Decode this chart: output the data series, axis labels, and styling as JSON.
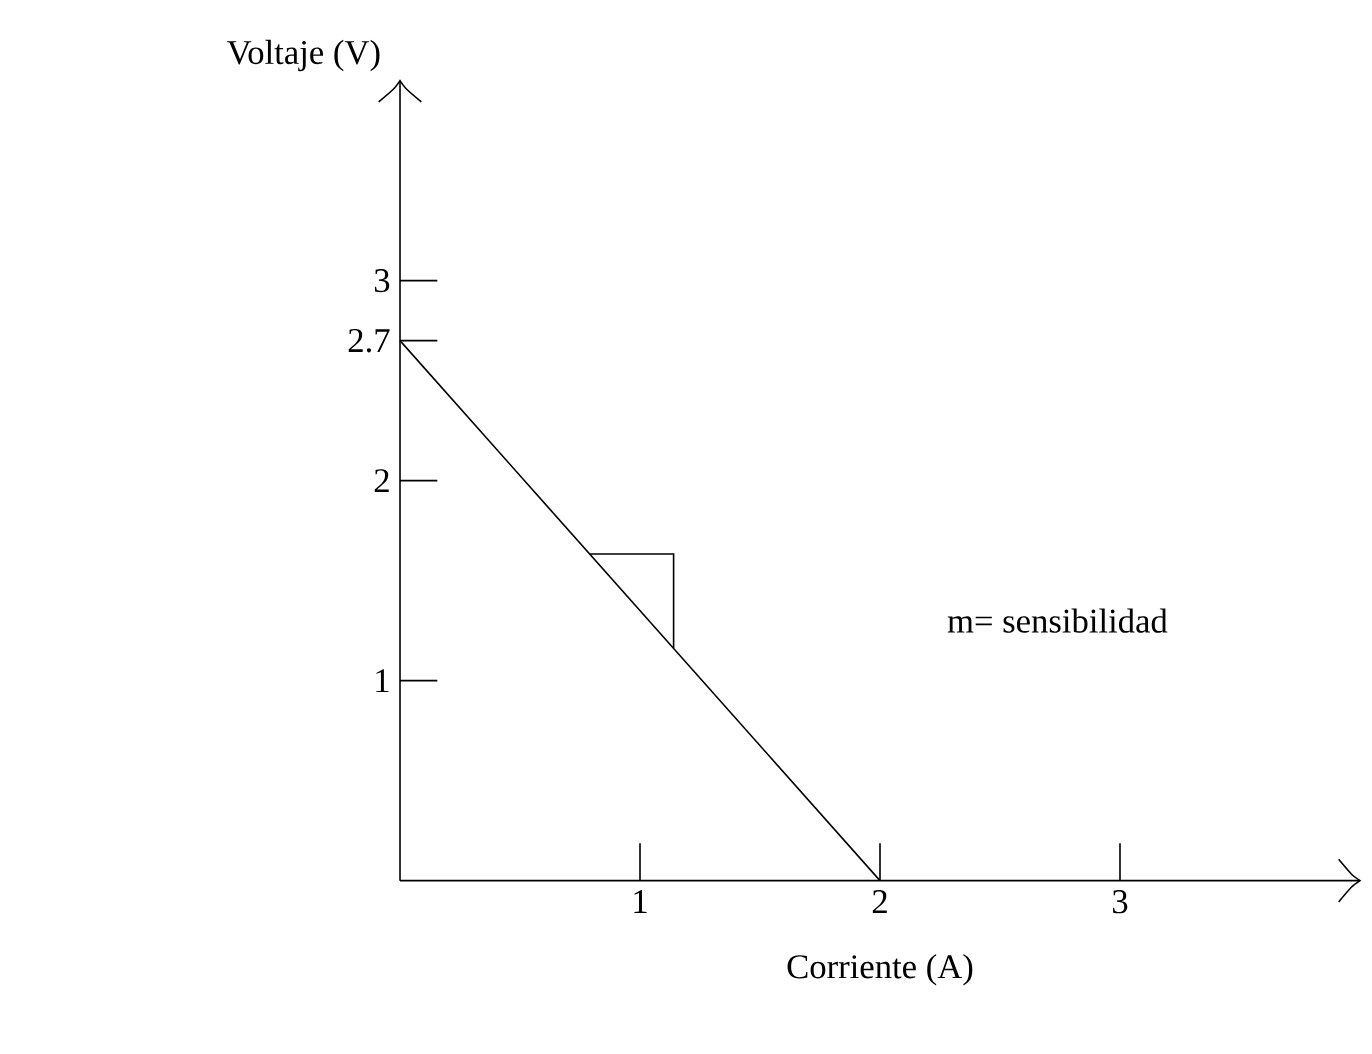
{
  "chart_data": {
    "type": "line",
    "xlabel": "Corriente (A)",
    "ylabel": "Voltaje (V)",
    "x": [
      0,
      2
    ],
    "values": [
      2.7,
      0
    ],
    "color": "#000000",
    "xlim": [
      0,
      4
    ],
    "ylim": [
      0,
      4
    ],
    "xticks": [
      1,
      2,
      3
    ],
    "yticks": [
      1,
      2,
      2.7,
      3
    ],
    "grid": false,
    "marker": "none",
    "line_style": "solid",
    "annotations": [
      "m= sensibilidad"
    ]
  }
}
